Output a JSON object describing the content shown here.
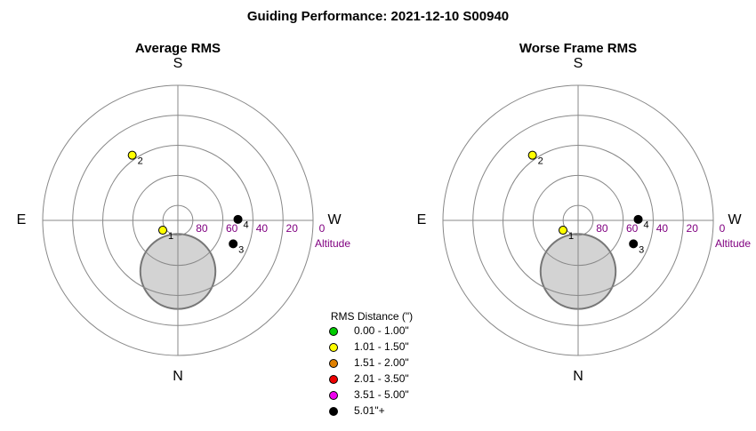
{
  "title": "Guiding Performance: 2021-12-10 S00940",
  "legend": {
    "title": "RMS Distance (\")",
    "items": [
      {
        "label": "0.00 - 1.00\"",
        "color": "#00cc00"
      },
      {
        "label": "1.01 - 1.50\"",
        "color": "#ffff00"
      },
      {
        "label": "1.51 - 2.00\"",
        "color": "#e08000"
      },
      {
        "label": "2.01 - 3.50\"",
        "color": "#ee0000"
      },
      {
        "label": "3.51 - 5.00\"",
        "color": "#ee00ee"
      },
      {
        "label": "5.01\"+",
        "color": "#000000"
      }
    ]
  },
  "chart_data": [
    {
      "type": "polar",
      "title": "Average RMS",
      "r_label": "Altitude",
      "rlim": [
        90,
        0
      ],
      "rticks": [
        80,
        60,
        40,
        20,
        0
      ],
      "azimuth_labels": [
        {
          "value": 180,
          "label": "S"
        },
        {
          "value": 90,
          "label": "E"
        },
        {
          "value": 270,
          "label": "W"
        },
        {
          "value": 0,
          "label": "N"
        }
      ],
      "exclusion": {
        "az": 0,
        "alt": 56,
        "radius": 25
      },
      "points": {
        "labels": [
          "1",
          "2",
          "3",
          "4"
        ],
        "az": [
          57,
          145,
          293,
          269
        ],
        "alt": [
          78,
          37,
          50,
          50
        ],
        "class": [
          1,
          1,
          5,
          5
        ]
      }
    },
    {
      "type": "polar",
      "title": "Worse Frame RMS",
      "r_label": "Altitude",
      "rlim": [
        90,
        0
      ],
      "rticks": [
        80,
        60,
        40,
        20,
        0
      ],
      "azimuth_labels": [
        {
          "value": 180,
          "label": "S"
        },
        {
          "value": 90,
          "label": "E"
        },
        {
          "value": 270,
          "label": "W"
        },
        {
          "value": 0,
          "label": "N"
        }
      ],
      "exclusion": {
        "az": 0,
        "alt": 56,
        "radius": 25
      },
      "points": {
        "labels": [
          "1",
          "2",
          "3",
          "4"
        ],
        "az": [
          57,
          145,
          293,
          269
        ],
        "alt": [
          78,
          37,
          50,
          50
        ],
        "class": [
          1,
          1,
          5,
          5
        ]
      }
    }
  ]
}
